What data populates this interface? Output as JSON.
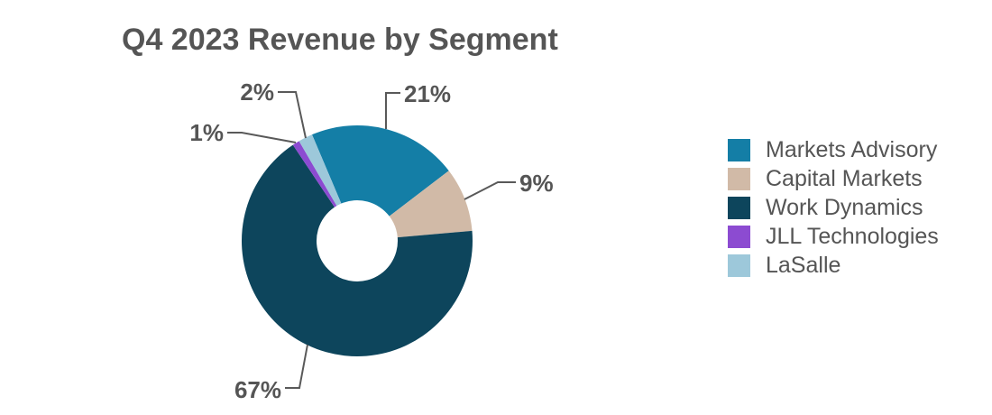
{
  "page": {
    "background": "#ffffff",
    "text_color": "#555555",
    "leader_line_color": "#595959"
  },
  "chart_data": {
    "type": "pie",
    "subtype": "donut",
    "title": "Q4 2023 Revenue by Segment",
    "categories": [
      "Markets Advisory",
      "Capital Markets",
      "Work Dynamics",
      "JLL Technologies",
      "LaSalle"
    ],
    "values": [
      21,
      9,
      67,
      1,
      2
    ],
    "unit": "%",
    "labels": [
      "21%",
      "9%",
      "67%",
      "1%",
      "2%"
    ],
    "colors": [
      "#147ea6",
      "#d1baa7",
      "#0d455c",
      "#8c4bd1",
      "#9dc8da"
    ],
    "legend_position": "right",
    "labels_position": "outside",
    "start_angle_deg": -23,
    "direction": "clockwise",
    "donut_hole_ratio": 0.35
  }
}
